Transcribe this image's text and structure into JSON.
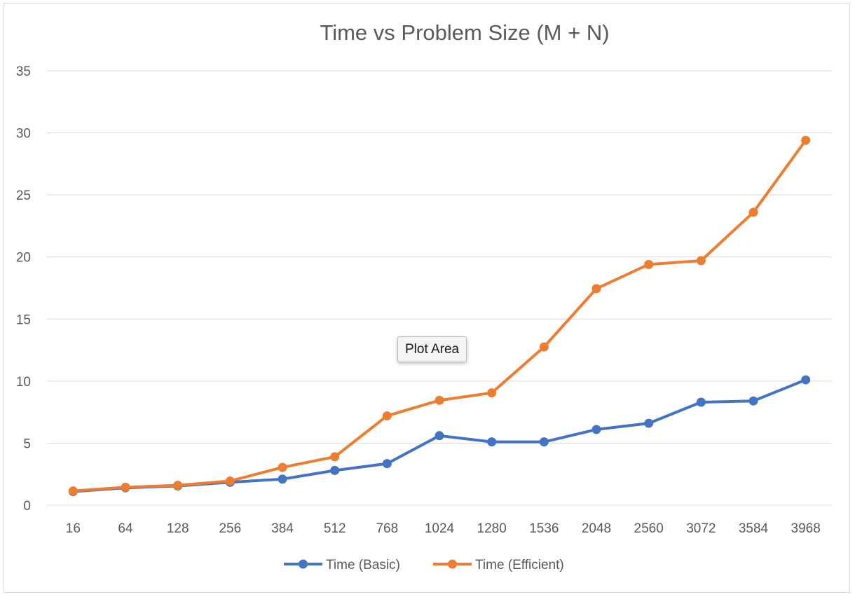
{
  "chart_data": {
    "type": "line",
    "title": "Time vs Problem Size (M + N)",
    "xlabel": "",
    "ylabel": "",
    "categories": [
      "16",
      "64",
      "128",
      "256",
      "384",
      "512",
      "768",
      "1024",
      "1280",
      "1536",
      "2048",
      "2560",
      "3072",
      "3584",
      "3968"
    ],
    "ylim": [
      0,
      35
    ],
    "yticks": [
      "0",
      "5",
      "10",
      "15",
      "20",
      "25",
      "30",
      "35"
    ],
    "grid": true,
    "legend_position": "bottom",
    "series": [
      {
        "name": "Time (Basic)",
        "color": "#4472c4",
        "values": [
          1.1,
          1.4,
          1.55,
          1.85,
          2.1,
          2.8,
          3.35,
          5.6,
          5.1,
          5.1,
          6.1,
          6.6,
          8.3,
          8.4,
          10.1
        ]
      },
      {
        "name": "Time (Efficient)",
        "color": "#ed7d31",
        "values": [
          1.15,
          1.45,
          1.6,
          1.95,
          3.05,
          3.9,
          7.2,
          8.45,
          9.05,
          12.75,
          17.45,
          19.4,
          19.7,
          23.6,
          29.4
        ]
      }
    ]
  },
  "tooltip": {
    "text": "Plot Area"
  },
  "colors": {
    "grid": "#d9d9d9",
    "text": "#595959"
  }
}
